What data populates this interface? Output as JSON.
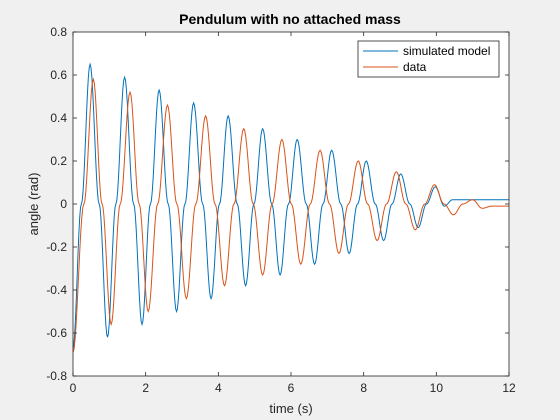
{
  "chart_data": {
    "type": "line",
    "title": "Pendulum with no attached mass",
    "xlabel": "time (s)",
    "ylabel": "angle (rad)",
    "xlim": [
      0,
      12
    ],
    "ylim": [
      -0.8,
      0.8
    ],
    "xticks": [
      0,
      2,
      4,
      6,
      8,
      10,
      12
    ],
    "yticks": [
      -0.8,
      -0.6,
      -0.4,
      -0.2,
      0,
      0.2,
      0.4,
      0.6,
      0.8
    ],
    "xtick_labels": [
      "0",
      "2",
      "4",
      "6",
      "8",
      "10",
      "12"
    ],
    "ytick_labels": [
      "-0.8",
      "-0.6",
      "-0.4",
      "-0.2",
      "0",
      "0.2",
      "0.4",
      "0.6",
      "0.8"
    ],
    "grid": false,
    "legend_position": "top-right",
    "series": [
      {
        "name": "simulated model",
        "color": "#0072BD",
        "x": [
          0,
          0.23,
          0.47,
          0.72,
          0.95,
          1.18,
          1.42,
          1.67,
          1.9,
          2.13,
          2.37,
          2.62,
          2.85,
          3.08,
          3.32,
          3.57,
          3.8,
          4.03,
          4.27,
          4.52,
          4.75,
          4.98,
          5.22,
          5.47,
          5.7,
          5.93,
          6.17,
          6.42,
          6.65,
          6.88,
          7.12,
          7.37,
          7.6,
          7.83,
          8.07,
          8.32,
          8.55,
          8.78,
          9.02,
          9.27,
          9.5,
          9.73,
          9.97,
          10.22,
          10.45,
          10.68,
          10.92,
          11.17,
          11.4,
          12
        ],
        "y": [
          -0.67,
          0,
          0.65,
          0,
          -0.62,
          0,
          0.59,
          0,
          -0.56,
          0,
          0.53,
          0,
          -0.5,
          0,
          0.47,
          0,
          -0.44,
          0,
          0.41,
          0,
          -0.38,
          0,
          0.35,
          0,
          -0.33,
          0,
          0.3,
          0,
          -0.28,
          0,
          0.25,
          0,
          -0.23,
          0,
          0.2,
          0,
          -0.17,
          0,
          0.14,
          0,
          -0.11,
          0,
          0.08,
          -0.01,
          0.02,
          0.02,
          0.02,
          0.02,
          0.02,
          0.02
        ]
      },
      {
        "name": "data",
        "color": "#D95319",
        "x": [
          0,
          0.3,
          0.56,
          0.8,
          1.05,
          1.3,
          1.57,
          1.82,
          2.07,
          2.33,
          2.6,
          2.86,
          3.12,
          3.38,
          3.65,
          3.91,
          4.17,
          4.43,
          4.7,
          4.96,
          5.22,
          5.48,
          5.75,
          6.01,
          6.27,
          6.53,
          6.8,
          7.06,
          7.32,
          7.58,
          7.85,
          8.11,
          8.37,
          8.63,
          8.9,
          9.16,
          9.42,
          9.68,
          9.95,
          10.21,
          10.47,
          10.73,
          11.0,
          11.26,
          11.52,
          11.78,
          12
        ],
        "y": [
          -0.69,
          0,
          0.58,
          0,
          -0.56,
          0,
          0.52,
          0,
          -0.5,
          0,
          0.46,
          0,
          -0.44,
          0,
          0.41,
          0,
          -0.38,
          0,
          0.35,
          0,
          -0.33,
          0,
          0.3,
          0,
          -0.28,
          0,
          0.25,
          0,
          -0.23,
          0,
          0.2,
          0,
          -0.17,
          0,
          0.15,
          0,
          -0.12,
          0,
          0.09,
          0,
          -0.05,
          0,
          0.02,
          -0.02,
          -0.01,
          -0.01,
          -0.01
        ]
      }
    ]
  }
}
